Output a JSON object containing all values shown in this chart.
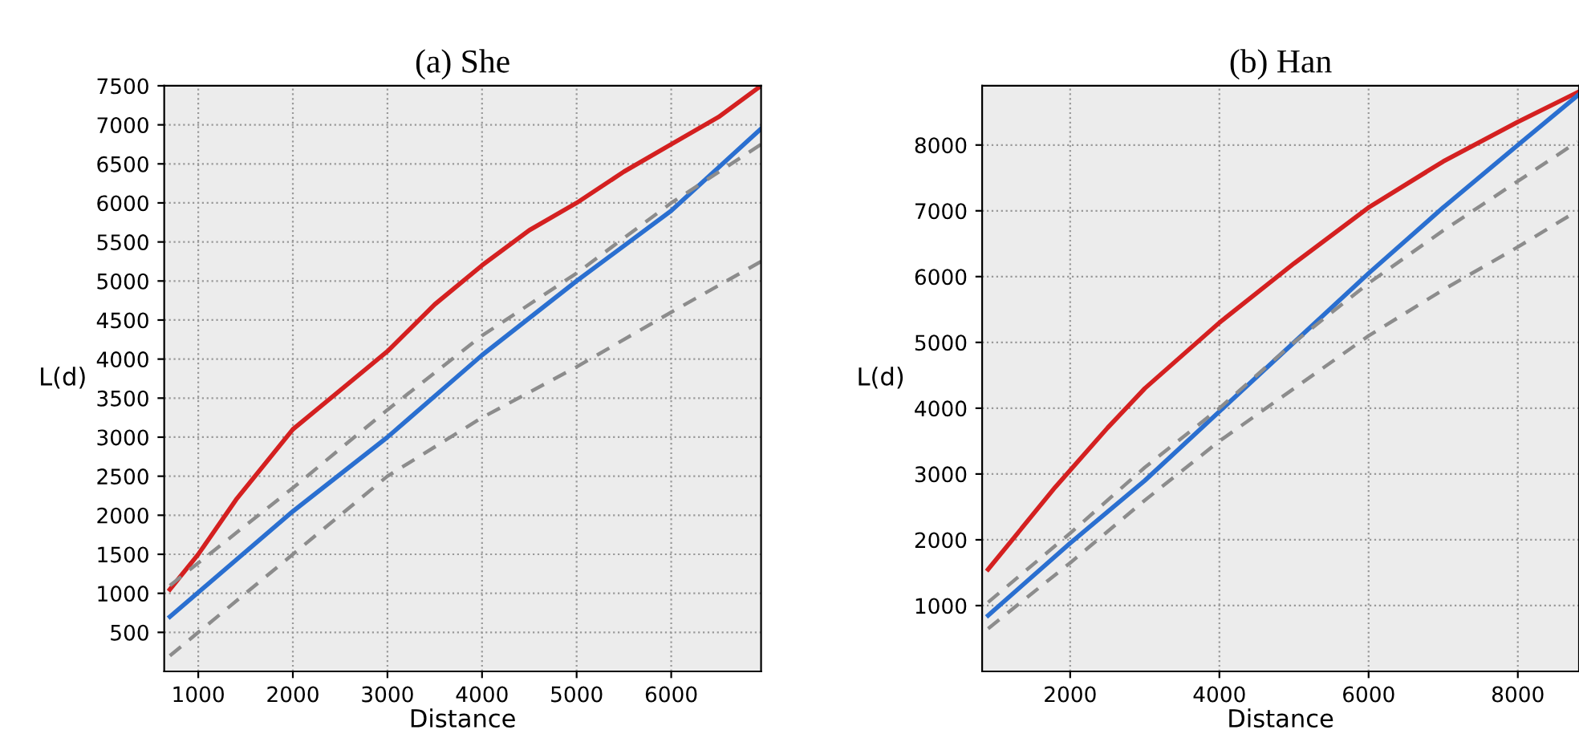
{
  "chart_data": [
    {
      "type": "line",
      "title": "(a) She",
      "xlabel": "Distance",
      "ylabel": "L(d)",
      "xlim": [
        640,
        6950
      ],
      "xticks": [
        1000,
        2000,
        3000,
        4000,
        5000,
        6000
      ],
      "ylim": [
        0,
        7500
      ],
      "yticks": [
        500,
        1000,
        1500,
        2000,
        2500,
        3000,
        3500,
        4000,
        4500,
        5000,
        5500,
        6000,
        6500,
        7000,
        7500
      ],
      "grid": true,
      "series": [
        {
          "color": "#d42020",
          "x": [
            700,
            1000,
            1400,
            2000,
            2500,
            3000,
            3500,
            4000,
            4500,
            5000,
            5500,
            6000,
            6500,
            6950
          ],
          "values": [
            1050,
            1500,
            2200,
            3100,
            3600,
            4100,
            4700,
            5200,
            5650,
            6000,
            6400,
            6750,
            7100,
            7500
          ]
        },
        {
          "color": "#2a6fd0",
          "x": [
            700,
            2000,
            3000,
            4000,
            5000,
            6000,
            6950
          ],
          "values": [
            700,
            2050,
            3000,
            4050,
            5000,
            5900,
            6950
          ]
        },
        {
          "color": "#8c8c8c",
          "line_style": "dashed",
          "x": [
            700,
            2000,
            3000,
            4000,
            5000,
            6000,
            6950
          ],
          "values": [
            1100,
            2350,
            3350,
            4300,
            5100,
            6000,
            6750
          ]
        },
        {
          "color": "#8c8c8c",
          "line_style": "dashed",
          "x": [
            700,
            1000,
            2000,
            3000,
            4000,
            5000,
            6000,
            6950
          ],
          "values": [
            200,
            500,
            1500,
            2500,
            3250,
            3900,
            4600,
            5250
          ]
        }
      ]
    },
    {
      "type": "line",
      "title": "(b) Han",
      "xlabel": "Distance",
      "ylabel": "L(d)",
      "xlim": [
        820,
        8820
      ],
      "xticks": [
        2000,
        4000,
        6000,
        8000
      ],
      "ylim": [
        0,
        8900
      ],
      "yticks": [
        1000,
        2000,
        3000,
        4000,
        5000,
        6000,
        7000,
        8000
      ],
      "grid": true,
      "series": [
        {
          "color": "#d42020",
          "x": [
            900,
            1800,
            2500,
            3000,
            4000,
            5000,
            6000,
            7000,
            8000,
            8800
          ],
          "values": [
            1550,
            2800,
            3700,
            4300,
            5300,
            6200,
            7050,
            7750,
            8350,
            8800
          ]
        },
        {
          "color": "#2a6fd0",
          "x": [
            900,
            2000,
            3000,
            4000,
            5000,
            6000,
            7000,
            8000,
            8800
          ],
          "values": [
            850,
            1950,
            2900,
            3950,
            5000,
            6050,
            7050,
            8000,
            8750
          ]
        },
        {
          "color": "#8c8c8c",
          "line_style": "dashed",
          "x": [
            900,
            2000,
            3000,
            4000,
            5000,
            6000,
            7000,
            8000,
            8800
          ],
          "values": [
            1050,
            2100,
            3100,
            4000,
            5000,
            5900,
            6700,
            7450,
            8050
          ]
        },
        {
          "color": "#8c8c8c",
          "line_style": "dashed",
          "x": [
            900,
            2000,
            3000,
            4000,
            5000,
            6000,
            7000,
            8000,
            8800
          ],
          "values": [
            650,
            1650,
            2600,
            3500,
            4300,
            5100,
            5800,
            6450,
            7000
          ]
        }
      ]
    }
  ]
}
